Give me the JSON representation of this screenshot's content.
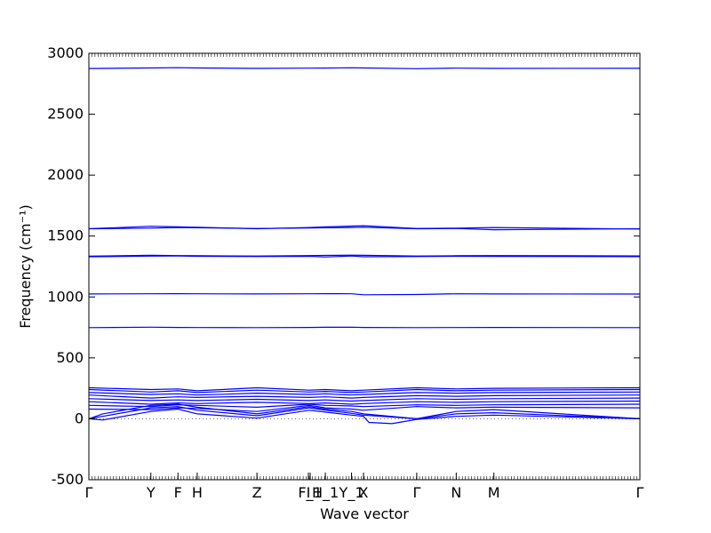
{
  "chart_data": {
    "type": "line",
    "xlabel": "Wave vector",
    "ylabel": "Frequency (cm⁻¹)",
    "ylim": [
      -500,
      3000
    ],
    "yticks": [
      -500,
      0,
      500,
      1000,
      1500,
      2000,
      2500,
      3000
    ],
    "x_range": [
      0,
      12
    ],
    "symmetry_points": [
      {
        "label": "Γ",
        "x": 0.0
      },
      {
        "label": "Y",
        "x": 1.35
      },
      {
        "label": "F",
        "x": 1.94
      },
      {
        "label": "H",
        "x": 2.36
      },
      {
        "label": "Z",
        "x": 3.66
      },
      {
        "label": "I",
        "x": 4.78
      },
      {
        "label": "F_1",
        "x": 4.82
      },
      {
        "label": "H_1",
        "x": 5.15
      },
      {
        "label": "Y_1",
        "x": 5.72
      },
      {
        "label": "X",
        "x": 5.98
      },
      {
        "label": "Γ",
        "x": 7.14
      },
      {
        "label": "N",
        "x": 8.0
      },
      {
        "label": "M",
        "x": 8.82
      },
      {
        "label": "Γ",
        "x": 12.0
      }
    ],
    "zero_line": true,
    "line_color": "#0000ff",
    "series": [
      {
        "x": [
          0,
          1.35,
          1.94,
          2.36,
          3.66,
          4.8,
          5.15,
          5.72,
          5.98,
          7.14,
          8.0,
          8.82,
          12.0
        ],
        "y": [
          2875,
          2880,
          2882,
          2880,
          2876,
          2878,
          2879,
          2881,
          2880,
          2874,
          2878,
          2876,
          2877
        ]
      },
      {
        "x": [
          0,
          1.35,
          1.94,
          2.36,
          3.66,
          4.8,
          5.15,
          5.72,
          5.98,
          7.14,
          8.0,
          8.82,
          12.0
        ],
        "y": [
          1560,
          1580,
          1575,
          1572,
          1560,
          1570,
          1575,
          1582,
          1585,
          1562,
          1565,
          1570,
          1558
        ]
      },
      {
        "x": [
          0,
          1.35,
          1.94,
          2.36,
          3.66,
          4.8,
          5.15,
          5.72,
          5.98,
          7.14,
          8.0,
          8.82,
          12.0
        ],
        "y": [
          1560,
          1565,
          1570,
          1568,
          1562,
          1566,
          1568,
          1570,
          1572,
          1560,
          1562,
          1552,
          1560
        ]
      },
      {
        "x": [
          0,
          1.35,
          1.94,
          2.36,
          3.66,
          4.8,
          5.15,
          5.72,
          5.98,
          7.14,
          8.0,
          8.82,
          12.0
        ],
        "y": [
          1335,
          1342,
          1340,
          1338,
          1336,
          1340,
          1341,
          1343,
          1342,
          1336,
          1338,
          1340,
          1337
        ]
      },
      {
        "x": [
          0,
          1.35,
          1.94,
          2.36,
          3.66,
          4.8,
          5.15,
          5.72,
          5.98,
          7.14,
          8.0,
          8.82,
          12.0
        ],
        "y": [
          1330,
          1335,
          1336,
          1334,
          1332,
          1334,
          1328,
          1336,
          1330,
          1332,
          1334,
          1333,
          1331
        ]
      },
      {
        "x": [
          0,
          1.35,
          1.94,
          2.36,
          3.66,
          4.8,
          5.15,
          5.72,
          5.98,
          7.14,
          8.0,
          8.82,
          12.0
        ],
        "y": [
          1025,
          1026,
          1027,
          1026,
          1025,
          1026,
          1027,
          1026,
          1018,
          1020,
          1026,
          1025,
          1024
        ]
      },
      {
        "x": [
          0,
          1.35,
          1.94,
          2.36,
          3.66,
          4.8,
          5.15,
          5.72,
          5.98,
          7.14,
          8.0,
          8.82,
          12.0
        ],
        "y": [
          748,
          752,
          750,
          749,
          748,
          750,
          751,
          752,
          750,
          748,
          749,
          750,
          748
        ]
      },
      {
        "x": [
          0,
          1.35,
          1.94,
          2.36,
          3.66,
          4.8,
          5.15,
          5.72,
          5.98,
          7.14,
          8.0,
          8.82,
          12.0
        ],
        "y": [
          255,
          240,
          245,
          230,
          255,
          235,
          240,
          230,
          235,
          255,
          245,
          250,
          255
        ]
      },
      {
        "x": [
          0,
          1.35,
          1.94,
          2.36,
          3.66,
          4.8,
          5.15,
          5.72,
          5.98,
          7.14,
          8.0,
          8.82,
          12.0
        ],
        "y": [
          240,
          220,
          230,
          215,
          235,
          220,
          225,
          215,
          220,
          240,
          230,
          235,
          240
        ]
      },
      {
        "x": [
          0,
          1.35,
          1.94,
          2.36,
          3.66,
          4.8,
          5.15,
          5.72,
          5.98,
          7.14,
          8.0,
          8.82,
          12.0
        ],
        "y": [
          215,
          200,
          205,
          195,
          210,
          200,
          205,
          195,
          200,
          215,
          210,
          215,
          220
        ]
      },
      {
        "x": [
          0,
          1.35,
          1.94,
          2.36,
          3.66,
          4.8,
          5.15,
          5.72,
          5.98,
          7.14,
          8.0,
          8.82,
          12.0
        ],
        "y": [
          195,
          170,
          180,
          175,
          185,
          175,
          180,
          170,
          175,
          190,
          185,
          190,
          195
        ]
      },
      {
        "x": [
          0,
          1.35,
          1.94,
          2.36,
          3.66,
          4.8,
          5.15,
          5.72,
          5.98,
          7.14,
          8.0,
          8.82,
          12.0
        ],
        "y": [
          165,
          150,
          155,
          150,
          160,
          150,
          155,
          145,
          150,
          165,
          160,
          165,
          170
        ]
      },
      {
        "x": [
          0,
          1.35,
          1.94,
          2.36,
          3.66,
          4.8,
          5.15,
          5.72,
          5.98,
          7.14,
          8.0,
          8.82,
          12.0
        ],
        "y": [
          140,
          120,
          130,
          125,
          135,
          125,
          130,
          120,
          125,
          140,
          135,
          140,
          145
        ]
      },
      {
        "x": [
          0,
          1.35,
          1.94,
          2.36,
          3.66,
          4.8,
          5.15,
          5.72,
          5.98,
          7.14,
          8.0,
          8.82,
          12.0
        ],
        "y": [
          110,
          100,
          115,
          110,
          95,
          120,
          110,
          105,
          100,
          115,
          110,
          115,
          120
        ]
      },
      {
        "x": [
          0,
          1.35,
          1.94,
          2.36,
          3.66,
          4.8,
          5.15,
          5.72,
          5.98,
          7.14,
          8.0,
          8.82,
          12.0
        ],
        "y": [
          80,
          75,
          90,
          85,
          60,
          110,
          90,
          80,
          70,
          100,
          90,
          95,
          90
        ]
      },
      {
        "x": [
          0,
          0.3,
          1.35,
          1.94,
          2.36,
          3.66,
          4.8,
          5.15,
          5.72,
          5.98,
          7.14,
          8.0,
          8.82,
          12.0
        ],
        "y": [
          0,
          40,
          110,
          120,
          95,
          40,
          100,
          80,
          60,
          40,
          0,
          60,
          75,
          0
        ]
      },
      {
        "x": [
          0,
          0.3,
          1.35,
          1.94,
          2.36,
          3.66,
          4.8,
          5.15,
          5.72,
          5.98,
          7.14,
          8.0,
          8.82,
          12.0
        ],
        "y": [
          0,
          20,
          90,
          100,
          70,
          25,
          90,
          70,
          45,
          30,
          0,
          40,
          50,
          0
        ]
      },
      {
        "x": [
          0,
          0.3,
          1.35,
          1.94,
          2.36,
          3.66,
          4.8,
          5.15,
          5.72,
          5.98,
          6.1,
          6.6,
          7.14,
          8.0,
          8.82,
          12.0
        ],
        "y": [
          0,
          -10,
          60,
          80,
          40,
          5,
          70,
          55,
          30,
          20,
          -30,
          -40,
          -5,
          20,
          30,
          0
        ]
      }
    ]
  }
}
